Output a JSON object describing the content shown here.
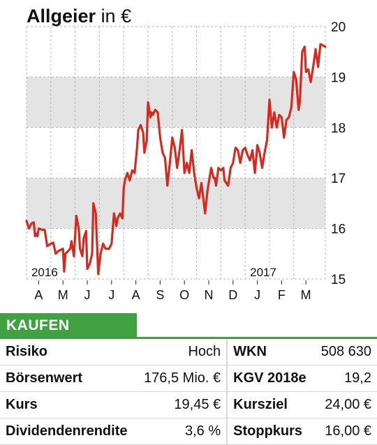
{
  "header": {
    "company": "Allgeier",
    "currency": "in €"
  },
  "chart_data": {
    "type": "line",
    "title": "Allgeier in €",
    "ylim": [
      15,
      20
    ],
    "yticks": [
      "15",
      "16",
      "17",
      "18",
      "19",
      "20"
    ],
    "shaded_bands": [
      [
        16,
        17
      ],
      [
        18,
        19
      ]
    ],
    "grid": true,
    "year_labels": [
      {
        "label": "2016",
        "x": 0.2
      },
      {
        "label": "2017",
        "x": 9.2
      }
    ],
    "months": [
      "A",
      "M",
      "J",
      "J",
      "A",
      "S",
      "O",
      "N",
      "D",
      "J",
      "F",
      "M"
    ],
    "series": [
      {
        "color": "#d42a1f",
        "points": [
          [
            0.0,
            16.15
          ],
          [
            0.1,
            16.0
          ],
          [
            0.2,
            16.1
          ],
          [
            0.3,
            16.12
          ],
          [
            0.35,
            15.85
          ],
          [
            0.4,
            15.9
          ],
          [
            0.45,
            15.85
          ],
          [
            0.5,
            16.0
          ],
          [
            0.6,
            15.98
          ],
          [
            0.75,
            15.97
          ],
          [
            0.85,
            15.65
          ],
          [
            1.0,
            15.7
          ],
          [
            1.1,
            15.72
          ],
          [
            1.2,
            15.5
          ],
          [
            1.3,
            15.55
          ],
          [
            1.5,
            15.6
          ],
          [
            1.55,
            15.15
          ],
          [
            1.6,
            15.5
          ],
          [
            1.7,
            15.55
          ],
          [
            1.8,
            15.6
          ],
          [
            1.85,
            15.75
          ],
          [
            1.95,
            15.45
          ],
          [
            2.05,
            16.25
          ],
          [
            2.15,
            16.0
          ],
          [
            2.2,
            15.6
          ],
          [
            2.3,
            15.45
          ],
          [
            2.35,
            15.8
          ],
          [
            2.45,
            15.95
          ],
          [
            2.5,
            15.2
          ],
          [
            2.6,
            15.3
          ],
          [
            2.7,
            15.5
          ],
          [
            2.75,
            16.5
          ],
          [
            2.85,
            16.3
          ],
          [
            2.95,
            15.1
          ],
          [
            3.05,
            15.5
          ],
          [
            3.15,
            15.7
          ],
          [
            3.25,
            15.6
          ],
          [
            3.4,
            15.6
          ],
          [
            3.5,
            15.7
          ],
          [
            3.6,
            16.3
          ],
          [
            3.7,
            16.05
          ],
          [
            3.75,
            16.2
          ],
          [
            3.8,
            16.25
          ],
          [
            3.85,
            16.3
          ],
          [
            3.95,
            16.2
          ],
          [
            4.0,
            16.8
          ],
          [
            4.05,
            16.95
          ],
          [
            4.15,
            17.1
          ],
          [
            4.25,
            16.95
          ],
          [
            4.35,
            17.15
          ],
          [
            4.45,
            17.1
          ],
          [
            4.55,
            17.6
          ],
          [
            4.6,
            17.95
          ],
          [
            4.7,
            18.05
          ],
          [
            4.8,
            17.9
          ],
          [
            4.85,
            17.5
          ],
          [
            4.95,
            17.75
          ],
          [
            5.0,
            18.5
          ],
          [
            5.1,
            18.2
          ],
          [
            5.15,
            18.3
          ],
          [
            5.2,
            18.25
          ],
          [
            5.3,
            18.35
          ],
          [
            5.4,
            18.3
          ],
          [
            5.5,
            17.8
          ],
          [
            5.6,
            17.5
          ],
          [
            5.7,
            17.4
          ],
          [
            5.8,
            16.85
          ],
          [
            5.9,
            17.3
          ],
          [
            6.0,
            17.8
          ],
          [
            6.05,
            17.7
          ],
          [
            6.1,
            17.6
          ],
          [
            6.2,
            17.2
          ],
          [
            6.3,
            17.55
          ],
          [
            6.4,
            17.95
          ],
          [
            6.5,
            17.1
          ],
          [
            6.6,
            17.3
          ],
          [
            6.7,
            17.1
          ],
          [
            6.8,
            17.55
          ],
          [
            6.9,
            17.1
          ],
          [
            7.0,
            16.8
          ],
          [
            7.1,
            16.6
          ],
          [
            7.2,
            16.9
          ],
          [
            7.35,
            16.3
          ],
          [
            7.45,
            16.75
          ],
          [
            7.6,
            17.2
          ],
          [
            7.7,
            17.0
          ],
          [
            7.75,
            17.0
          ],
          [
            7.8,
            16.85
          ],
          [
            7.9,
            17.2
          ],
          [
            8.0,
            17.15
          ],
          [
            8.1,
            17.2
          ],
          [
            8.15,
            16.95
          ],
          [
            8.3,
            16.85
          ],
          [
            8.4,
            17.2
          ],
          [
            8.5,
            17.3
          ],
          [
            8.6,
            17.6
          ],
          [
            8.7,
            17.55
          ],
          [
            8.8,
            17.3
          ],
          [
            8.9,
            17.55
          ],
          [
            9.0,
            17.6
          ],
          [
            9.1,
            17.45
          ],
          [
            9.2,
            17.35
          ],
          [
            9.3,
            17.55
          ],
          [
            9.4,
            17.1
          ],
          [
            9.5,
            17.65
          ],
          [
            9.6,
            17.5
          ],
          [
            9.7,
            17.2
          ],
          [
            9.8,
            17.5
          ],
          [
            9.9,
            17.75
          ],
          [
            10.0,
            18.55
          ],
          [
            10.1,
            18.0
          ],
          [
            10.2,
            18.3
          ],
          [
            10.3,
            18.0
          ],
          [
            10.4,
            18.25
          ],
          [
            10.5,
            18.2
          ],
          [
            10.6,
            17.8
          ],
          [
            10.7,
            18.15
          ],
          [
            10.8,
            18.2
          ],
          [
            10.9,
            18.4
          ],
          [
            11.0,
            19.1
          ],
          [
            11.1,
            18.95
          ],
          [
            11.2,
            18.35
          ],
          [
            11.25,
            18.5
          ],
          [
            11.35,
            19.5
          ],
          [
            11.45,
            19.6
          ],
          [
            11.5,
            19.1
          ],
          [
            11.6,
            19.15
          ],
          [
            11.7,
            18.9
          ],
          [
            11.8,
            19.2
          ],
          [
            11.9,
            19.55
          ],
          [
            12.0,
            19.2
          ],
          [
            12.1,
            19.65
          ],
          [
            12.3,
            19.6
          ]
        ]
      }
    ]
  },
  "rating": {
    "label": "KAUFEN",
    "color": "#3fa13f"
  },
  "table": {
    "rows": [
      {
        "l1": "Risiko",
        "v1": "Hoch",
        "l2": "WKN",
        "v2": "508 630"
      },
      {
        "l1": "Börsenwert",
        "v1": "176,5 Mio. €",
        "l2": "KGV 2018e",
        "v2": "19,2"
      },
      {
        "l1": "Kurs",
        "v1": "19,45 €",
        "l2": "Kursziel",
        "v2": "24,00 €"
      },
      {
        "l1": "Dividendenrendite",
        "v1": "3,6 %",
        "l2": "Stoppkurs",
        "v2": "16,00 €"
      }
    ]
  }
}
